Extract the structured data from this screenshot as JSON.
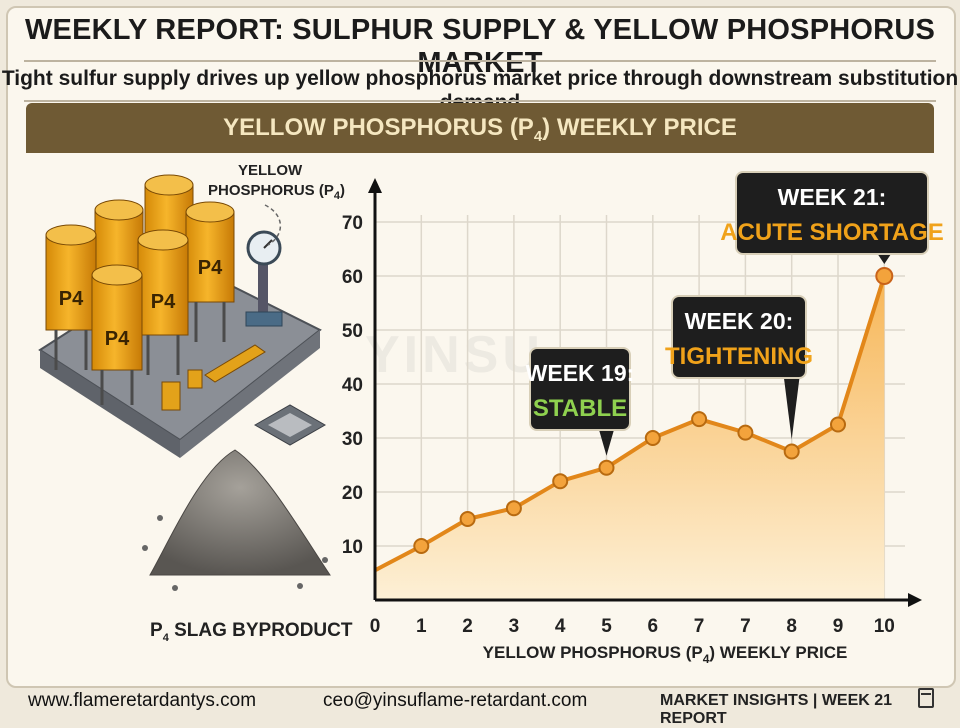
{
  "header": {
    "title": "WEEKLY REPORT: SULPHUR SUPPLY & YELLOW PHOSPHORUS MARKET",
    "subtitle": "Tight sulfur supply drives up yellow phosphorus market price through downstream substitution demand"
  },
  "band": {
    "title_main": "YELLOW PHOSPHORUS (P",
    "title_sub": "4",
    "title_end": ") WEEKLY PRICE"
  },
  "illustration": {
    "silo_label": "P4",
    "yellow_label_1": "YELLOW",
    "yellow_label_2": "PHOSPHORUS (P",
    "yellow_label_sub": "4",
    "yellow_label_end": ")",
    "slag_label_pre": "P",
    "slag_label_sub": "4",
    "slag_label_post": " SLAG BYPRODUCT"
  },
  "watermark": "YINSU",
  "chart_data": {
    "type": "area",
    "x_ticks": [
      "0",
      "1",
      "2",
      "3",
      "4",
      "5",
      "6",
      "7",
      "7",
      "8",
      "9",
      "10"
    ],
    "y_ticks": [
      10,
      20,
      30,
      40,
      50,
      60,
      70
    ],
    "ylim": [
      0,
      75
    ],
    "values": [
      5.5,
      10,
      15,
      17,
      22,
      24.5,
      30,
      33.5,
      31,
      27.5,
      32.5,
      60
    ],
    "xlabel_pre": "YELLOW PHOSPHORUS (P",
    "xlabel_sub": "4",
    "xlabel_post": ") WEEKLY PRICE",
    "grid": true,
    "annotations": [
      {
        "line1": "WEEK 19:",
        "line2": "STABLE",
        "point_index": 5,
        "accent": "#8fd14f"
      },
      {
        "line1": "WEEK 20:",
        "line2": "TIGHTENING",
        "point_index": 9,
        "accent": "#f0a21a"
      },
      {
        "line1": "WEEK 21:",
        "line2": "ACUTE SHORTAGE",
        "point_index": 11,
        "accent": "#f0a21a"
      }
    ],
    "colors": {
      "line": "#e2871a",
      "fill_top": "#f7b657",
      "fill_bottom": "#fdf0d6",
      "point": "#f3a33c"
    }
  },
  "footer": {
    "website": "www.flameretardantys.com",
    "email": "ceo@yinsuflame-retardant.com",
    "report_left": "MARKET INSIGHTS",
    "report_sep": " | ",
    "report_right": "WEEK 21 REPORT"
  }
}
